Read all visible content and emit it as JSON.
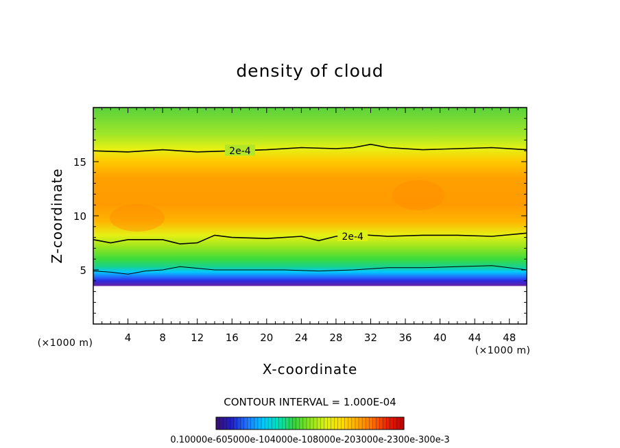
{
  "chart_data": {
    "type": "heatmap",
    "title": "density of cloud",
    "xlabel": "X-coordinate",
    "ylabel": "Z-coordinate",
    "x_unit": "(×1000 m)",
    "z_unit": "(×1000 m)",
    "xlim": [
      0,
      50
    ],
    "zlim": [
      0,
      20
    ],
    "x_ticks": [
      4,
      8,
      12,
      16,
      20,
      24,
      28,
      32,
      36,
      40,
      44,
      48
    ],
    "z_ticks": [
      5,
      10,
      15
    ],
    "x_tick_labels": [
      "4",
      "8",
      "12",
      "16",
      "20",
      "24",
      "28",
      "32",
      "36",
      "40",
      "44",
      "48"
    ],
    "z_tick_labels": [
      "5",
      "10",
      "15"
    ],
    "contour_interval_text": "CONTOUR INTERVAL = 1.000E-04",
    "contour_labels": [
      "2e-4",
      "2e-4"
    ],
    "colorbar_labels_text": "0.10000e-605000e-104000e-108000e-203000e-2300e-300e-3",
    "colorbar_colors": [
      "#3b0f6e",
      "#2020c8",
      "#1e78ff",
      "#00c8ff",
      "#00e0b4",
      "#37d23c",
      "#8ce61e",
      "#dcf014",
      "#ffdc00",
      "#ffaa00",
      "#ff6e00",
      "#e61e00",
      "#c00000"
    ],
    "field_profile": [
      {
        "z": 3.5,
        "color": "#6a1fa0"
      },
      {
        "z": 4.0,
        "color": "#2b2be0"
      },
      {
        "z": 4.4,
        "color": "#1e78ff"
      },
      {
        "z": 4.8,
        "color": "#00c8ff"
      },
      {
        "z": 5.3,
        "color": "#19d28c"
      },
      {
        "z": 6.0,
        "color": "#3cdc3c"
      },
      {
        "z": 7.2,
        "color": "#a0e61e"
      },
      {
        "z": 8.2,
        "color": "#e6f014"
      },
      {
        "z": 9.5,
        "color": "#ffb400"
      },
      {
        "z": 11.0,
        "color": "#ff9b00"
      },
      {
        "z": 13.5,
        "color": "#ffa000"
      },
      {
        "z": 15.0,
        "color": "#ffc800"
      },
      {
        "z": 16.2,
        "color": "#e6f014"
      },
      {
        "z": 17.5,
        "color": "#a0e628"
      },
      {
        "z": 20.0,
        "color": "#5ad23c"
      }
    ],
    "contours": [
      {
        "label": "2e-4",
        "points": [
          [
            0,
            16.0
          ],
          [
            4,
            15.9
          ],
          [
            8,
            16.1
          ],
          [
            12,
            15.9
          ],
          [
            16,
            16.0
          ],
          [
            20,
            16.1
          ],
          [
            24,
            16.3
          ],
          [
            28,
            16.2
          ],
          [
            30,
            16.3
          ],
          [
            32,
            16.6
          ],
          [
            34,
            16.3
          ],
          [
            38,
            16.1
          ],
          [
            42,
            16.2
          ],
          [
            46,
            16.3
          ],
          [
            50,
            16.1
          ]
        ]
      },
      {
        "label": "2e-4",
        "points": [
          [
            0,
            7.8
          ],
          [
            2,
            7.5
          ],
          [
            4,
            7.8
          ],
          [
            8,
            7.8
          ],
          [
            10,
            7.4
          ],
          [
            12,
            7.5
          ],
          [
            14,
            8.2
          ],
          [
            16,
            8.0
          ],
          [
            20,
            7.9
          ],
          [
            24,
            8.1
          ],
          [
            26,
            7.7
          ],
          [
            28,
            8.1
          ],
          [
            30,
            8.3
          ],
          [
            34,
            8.1
          ],
          [
            38,
            8.2
          ],
          [
            42,
            8.2
          ],
          [
            46,
            8.1
          ],
          [
            50,
            8.4
          ]
        ]
      },
      {
        "label": "",
        "points": [
          [
            0,
            4.9
          ],
          [
            2,
            4.8
          ],
          [
            4,
            4.6
          ],
          [
            6,
            4.9
          ],
          [
            8,
            5.0
          ],
          [
            10,
            5.3
          ],
          [
            14,
            5.0
          ],
          [
            18,
            5.0
          ],
          [
            22,
            5.0
          ],
          [
            26,
            4.9
          ],
          [
            30,
            5.0
          ],
          [
            34,
            5.2
          ],
          [
            38,
            5.2
          ],
          [
            42,
            5.3
          ],
          [
            46,
            5.4
          ],
          [
            50,
            5.0
          ]
        ]
      }
    ]
  }
}
